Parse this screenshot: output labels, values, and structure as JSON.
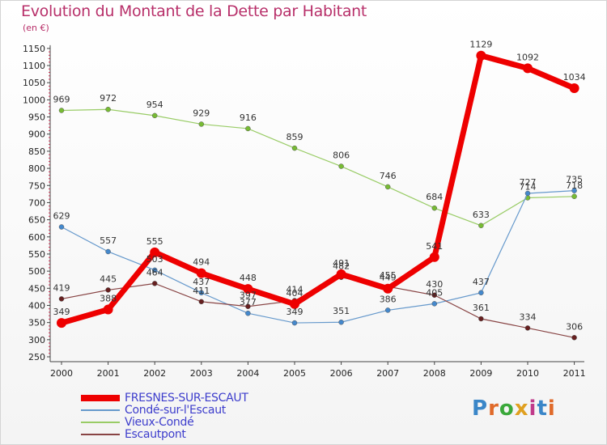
{
  "chart_data": {
    "type": "line",
    "title": "Evolution du Montant de la Dette par Habitant",
    "subtitle": "(en €)",
    "categories": [
      "2000",
      "2001",
      "2002",
      "2003",
      "2004",
      "2005",
      "2006",
      "2007",
      "2008",
      "2009",
      "2010",
      "2011"
    ],
    "ylim": [
      250,
      1150
    ],
    "yticks": [
      250,
      300,
      350,
      400,
      450,
      500,
      550,
      600,
      650,
      700,
      750,
      800,
      850,
      900,
      950,
      1000,
      1050,
      1100,
      1150
    ],
    "grid": false,
    "legend_position": "bottom-left",
    "series": [
      {
        "name": "Vieux-Condé",
        "color": "#99cc66",
        "marker": "#77bb33",
        "width": 1.2,
        "values": [
          969,
          972,
          954,
          929,
          916,
          859,
          806,
          746,
          684,
          633,
          714,
          718
        ]
      },
      {
        "name": "Condé-sur-l'Escaut",
        "color": "#6699cc",
        "marker": "#4488cc",
        "width": 1.2,
        "values": [
          629,
          557,
          503,
          437,
          377,
          349,
          351,
          386,
          405,
          437,
          727,
          735
        ]
      },
      {
        "name": "Escautpont",
        "color": "#884444",
        "marker": "#661f1f",
        "width": 1.2,
        "values": [
          419,
          445,
          464,
          411,
          397,
          414,
          482,
          455,
          430,
          361,
          334,
          306
        ]
      },
      {
        "name": "FRESNES-SUR-ESCAUT",
        "color": "#ee0000",
        "marker": "#ee0000",
        "width": 7,
        "values": [
          349,
          388,
          555,
          494,
          448,
          404,
          491,
          449,
          541,
          1129,
          1092,
          1034
        ]
      }
    ],
    "legend_order": [
      "FRESNES-SUR-ESCAUT",
      "Condé-sur-l'Escaut",
      "Vieux-Condé",
      "Escautpont"
    ]
  },
  "branding": {
    "logo_text": "Proxiti",
    "logo_colors": [
      "#3a86c8",
      "#e06a2a",
      "#3aa83a",
      "#e0a020",
      "#c03a8a",
      "#3a86c8",
      "#e06a2a"
    ]
  }
}
